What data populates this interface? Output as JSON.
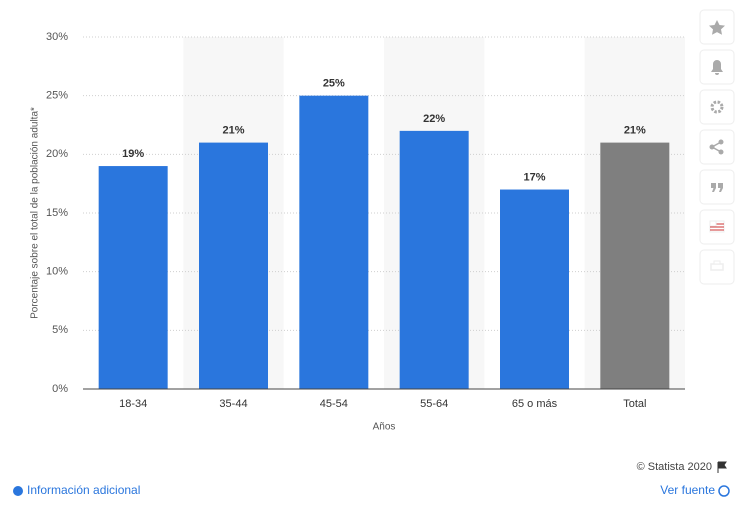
{
  "chart_data": {
    "type": "bar",
    "categories": [
      "18-34",
      "35-44",
      "45-54",
      "55-64",
      "65 o más",
      "Total"
    ],
    "values": [
      19,
      21,
      25,
      22,
      17,
      21
    ],
    "value_labels": [
      "19%",
      "21%",
      "25%",
      "22%",
      "17%",
      "21%"
    ],
    "colors": [
      "#2a76dd",
      "#2a76dd",
      "#2a76dd",
      "#2a76dd",
      "#2a76dd",
      "#7f7f7f"
    ],
    "ylim": [
      0,
      30
    ],
    "yticks": [
      {
        "value": 0,
        "label": "0%"
      },
      {
        "value": 5,
        "label": "5%"
      },
      {
        "value": 10,
        "label": "10%"
      },
      {
        "value": 15,
        "label": "15%"
      },
      {
        "value": 20,
        "label": "20%"
      },
      {
        "value": 25,
        "label": "25%"
      },
      {
        "value": 30,
        "label": "30%"
      }
    ],
    "y_label": "Porcentaje sobre el total de la población adulta*",
    "x_label": "Años",
    "grid": true
  },
  "footer": {
    "copyright": "© Statista 2020",
    "info": "Información adicional",
    "source": "Ver fuente"
  }
}
